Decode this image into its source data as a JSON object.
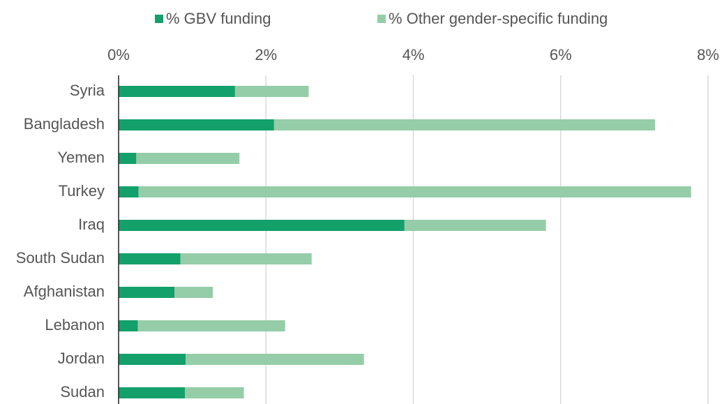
{
  "chart_data": {
    "type": "bar",
    "orientation": "horizontal",
    "stacked": true,
    "categories": [
      "Syria",
      "Bangladesh",
      "Yemen",
      "Turkey",
      "Iraq",
      "South Sudan",
      "Afghanistan",
      "Lebanon",
      "Jordan",
      "Sudan"
    ],
    "series": [
      {
        "name": "% GBV funding",
        "color": "#13a06b",
        "values": [
          1.58,
          2.11,
          0.24,
          0.27,
          3.88,
          0.84,
          0.76,
          0.26,
          0.91,
          0.9
        ]
      },
      {
        "name": "% Other gender-specific funding",
        "color": "#95cda8",
        "values": [
          1.0,
          5.17,
          1.4,
          7.5,
          1.92,
          1.78,
          0.52,
          2.0,
          2.42,
          0.8
        ]
      }
    ],
    "xlim": [
      0,
      8
    ],
    "xticks": [
      {
        "value": 0,
        "label": "0%"
      },
      {
        "value": 2,
        "label": "2%"
      },
      {
        "value": 4,
        "label": "4%"
      },
      {
        "value": 6,
        "label": "6%"
      },
      {
        "value": 8,
        "label": "8%"
      }
    ],
    "grid": true,
    "legend": "top"
  }
}
